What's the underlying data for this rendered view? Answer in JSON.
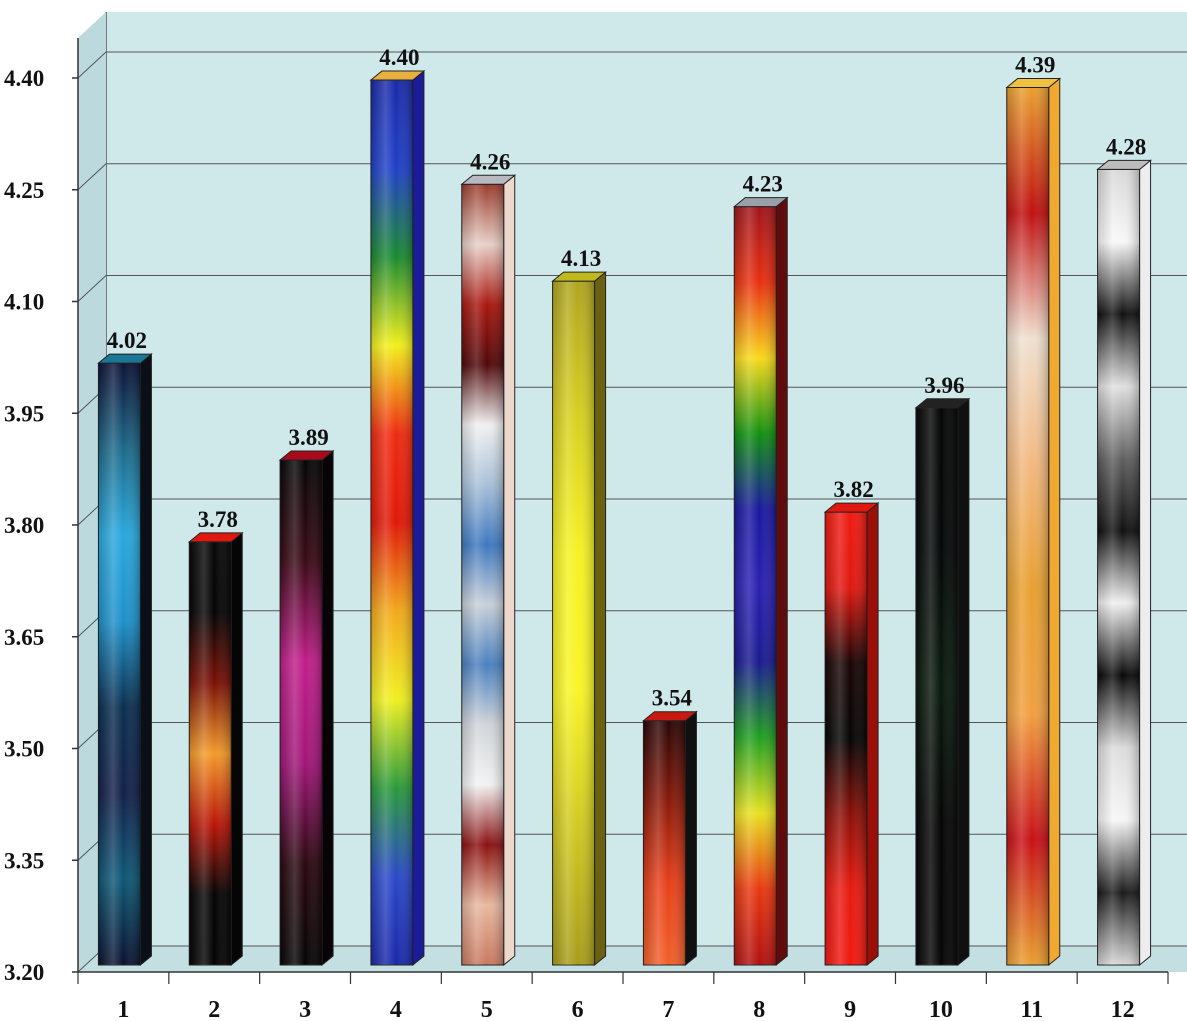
{
  "chart_data": {
    "type": "bar",
    "title": "",
    "xlabel": "",
    "ylabel": "",
    "categories": [
      "1",
      "2",
      "3",
      "4",
      "5",
      "6",
      "7",
      "8",
      "9",
      "10",
      "11",
      "12"
    ],
    "values": [
      4.02,
      3.78,
      3.89,
      4.4,
      4.26,
      4.13,
      3.54,
      4.23,
      3.82,
      3.96,
      4.39,
      4.28
    ],
    "value_labels": [
      "4.02",
      "3.78",
      "3.89",
      "4.40",
      "4.26",
      "4.13",
      "3.54",
      "4.23",
      "3.82",
      "3.96",
      "4.39",
      "4.28"
    ],
    "ylim": [
      3.2,
      4.4
    ],
    "yticks": [
      "3.20",
      "3.35",
      "3.50",
      "3.65",
      "3.80",
      "3.95",
      "4.10",
      "4.25",
      "4.40"
    ],
    "grid": true,
    "legend": "none",
    "style": "3d",
    "background_color": "#cfe8ea",
    "bar_gradients": [
      [
        "#0d1236",
        "#1d6a8a",
        "#2aa8dc",
        "#1e90c8",
        "#0b2f50",
        "#13204a",
        "#0e5876",
        "#0a1230"
      ],
      [
        "#080808",
        "#050505",
        "#7a1006",
        "#f39a2a",
        "#b91608",
        "#050505",
        "#040404"
      ],
      [
        "#060606",
        "#3a0a16",
        "#c01f8a",
        "#a01678",
        "#2a0810",
        "#050505"
      ],
      [
        "#1a2aa8",
        "#2040c8",
        "#1a8a30",
        "#f2ef1a",
        "#ef2a10",
        "#e01808",
        "#f2a81a",
        "#f0f020",
        "#2a9a3a",
        "#2a48c8",
        "#1a28a8"
      ],
      [
        "#9a3a2a",
        "#e8d0c8",
        "#a81810",
        "#50080a",
        "#f0f0f0",
        "#a8c0d8",
        "#3e78c0",
        "#c8d0d8",
        "#4a80c0",
        "#d0d4d8",
        "#f2f2f2",
        "#8a1010",
        "#e8b8a0",
        "#c87860"
      ],
      [
        "#b0a420",
        "#d8d020",
        "#f6f224",
        "#f8f426",
        "#d0c820",
        "#a89c1a"
      ],
      [
        "#2a0606",
        "#8a1a0a",
        "#e8401a",
        "#f0602a"
      ],
      [
        "#a0141a",
        "#e83010",
        "#f8d81a",
        "#109010",
        "#1a18a0",
        "#2a20b0",
        "#1a1a90",
        "#20a020",
        "#e8e020",
        "#e83810",
        "#b01010"
      ],
      [
        "#f01a10",
        "#e01810",
        "#1a0505",
        "#050505",
        "#8a1008",
        "#e81a10",
        "#f01810"
      ],
      [
        "#060606",
        "#050808",
        "#0a1a0e",
        "#050505",
        "#060606"
      ],
      [
        "#e8a030",
        "#c01010",
        "#f0e0d0",
        "#f2b880",
        "#e8a030",
        "#f0a040",
        "#c81018",
        "#e8a030"
      ],
      [
        "#d8d8d8",
        "#f8f8f8",
        "#101010",
        "#e0e0e0",
        "#606060",
        "#101010",
        "#f0f0f0",
        "#080808",
        "#dcdcdc",
        "#f6f6f6",
        "#1a1a1a",
        "#d8d8d8"
      ]
    ],
    "side_colors": [
      "#0a1018",
      "#050505",
      "#080306",
      "#1c1c9a",
      "#ecd8cc",
      "#6a6210",
      "#101010",
      "#600c0c",
      "#9a1008",
      "#101010",
      "#f0a830",
      "#ededed"
    ],
    "top_colors": [
      "#1a7896",
      "#e01810",
      "#a80a1a",
      "#e8b040",
      "#b8b8c0",
      "#c0b81c",
      "#c81a10",
      "#9aa0a8",
      "#e01810",
      "#222222",
      "#f0c040",
      "#bdbdbd"
    ]
  }
}
